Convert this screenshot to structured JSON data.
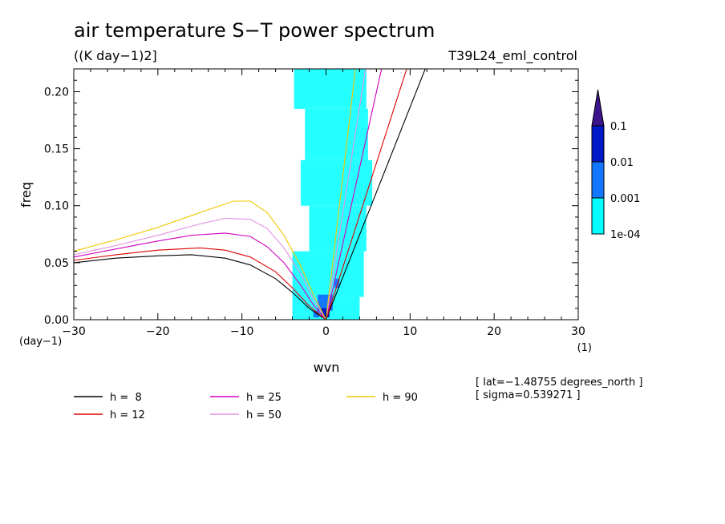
{
  "chart_data": {
    "type": "line",
    "title": "air temperature S−T power spectrum",
    "units": "((K day−1)2]",
    "run_label": "T39L24_eml_control",
    "xlabel": "wvn",
    "ylabel": "freq",
    "x_units": "(1)",
    "y_units": "(day−1)",
    "xlim": [
      -30,
      30
    ],
    "ylim": [
      0,
      0.22
    ],
    "x_ticks": [
      -30,
      -20,
      -10,
      0,
      10,
      20,
      30
    ],
    "x_tick_labels": [
      "−30",
      "−20",
      "−10",
      "0",
      "10",
      "20",
      "30"
    ],
    "y_ticks": [
      0,
      0.05,
      0.1,
      0.15,
      0.2
    ],
    "y_tick_labels": [
      "0.00",
      "0.05",
      "0.10",
      "0.15",
      "0.20"
    ],
    "colorbar": {
      "levels": [
        "1e-04",
        "0.001",
        "0.01",
        "0.1"
      ],
      "colors": [
        "#00ffff",
        "#1478ff",
        "#0019c8",
        "#3c148c"
      ]
    },
    "legend": {
      "placement": "bottom-left",
      "entries": [
        {
          "label": "h =  8",
          "color": "#000000"
        },
        {
          "label": "h = 12",
          "color": "#e00000"
        },
        {
          "label": "h = 25",
          "color": "#d000c0"
        },
        {
          "label": "h = 50",
          "color": "#e090e0"
        },
        {
          "label": "h = 90",
          "color": "#f0c800"
        }
      ]
    },
    "info": [
      "[ lat=−1.48755 degrees_north ]",
      "[ sigma=0.539271 ]"
    ],
    "kelvin_lines": [
      {
        "h": 8,
        "color": "#000000",
        "points": [
          [
            0,
            0
          ],
          [
            11.8,
            0.22
          ]
        ]
      },
      {
        "h": 12,
        "color": "#e00000",
        "points": [
          [
            0,
            0
          ],
          [
            9.6,
            0.22
          ]
        ]
      },
      {
        "h": 25,
        "color": "#d000c0",
        "points": [
          [
            0,
            0
          ],
          [
            6.6,
            0.22
          ]
        ]
      },
      {
        "h": 50,
        "color": "#e090e0",
        "points": [
          [
            0,
            0
          ],
          [
            4.7,
            0.22
          ]
        ]
      },
      {
        "h": 90,
        "color": "#f0c800",
        "points": [
          [
            0,
            0
          ],
          [
            3.5,
            0.22
          ]
        ]
      }
    ],
    "rossby_curves": [
      {
        "h": 8,
        "color": "#000000",
        "points": [
          [
            -30,
            0.05
          ],
          [
            -25,
            0.054
          ],
          [
            -20,
            0.056
          ],
          [
            -16,
            0.057
          ],
          [
            -12,
            0.054
          ],
          [
            -9,
            0.048
          ],
          [
            -6,
            0.036
          ],
          [
            -4,
            0.024
          ],
          [
            -2,
            0.01
          ],
          [
            0,
            0
          ]
        ]
      },
      {
        "h": 12,
        "color": "#e00000",
        "points": [
          [
            -30,
            0.052
          ],
          [
            -25,
            0.057
          ],
          [
            -20,
            0.061
          ],
          [
            -15,
            0.063
          ],
          [
            -12,
            0.061
          ],
          [
            -9,
            0.055
          ],
          [
            -6,
            0.042
          ],
          [
            -4,
            0.028
          ],
          [
            -2,
            0.012
          ],
          [
            0,
            0
          ]
        ]
      },
      {
        "h": 25,
        "color": "#d000c0",
        "points": [
          [
            -30,
            0.055
          ],
          [
            -25,
            0.062
          ],
          [
            -20,
            0.069
          ],
          [
            -16,
            0.074
          ],
          [
            -12,
            0.076
          ],
          [
            -9,
            0.073
          ],
          [
            -7,
            0.064
          ],
          [
            -5,
            0.05
          ],
          [
            -3,
            0.03
          ],
          [
            -1.5,
            0.013
          ],
          [
            0,
            0
          ]
        ]
      },
      {
        "h": 50,
        "color": "#e090e0",
        "points": [
          [
            -30,
            0.057
          ],
          [
            -25,
            0.065
          ],
          [
            -20,
            0.074
          ],
          [
            -15,
            0.084
          ],
          [
            -12,
            0.089
          ],
          [
            -9,
            0.088
          ],
          [
            -7,
            0.08
          ],
          [
            -5,
            0.063
          ],
          [
            -3,
            0.04
          ],
          [
            -1.5,
            0.018
          ],
          [
            0,
            0
          ]
        ]
      },
      {
        "h": 90,
        "color": "#f0c800",
        "points": [
          [
            -30,
            0.06
          ],
          [
            -25,
            0.07
          ],
          [
            -20,
            0.081
          ],
          [
            -15,
            0.094
          ],
          [
            -11,
            0.104
          ],
          [
            -9,
            0.104
          ],
          [
            -7,
            0.094
          ],
          [
            -5,
            0.074
          ],
          [
            -3,
            0.047
          ],
          [
            -1.5,
            0.022
          ],
          [
            0,
            0
          ]
        ]
      }
    ],
    "spectrum_patches": [
      {
        "x": [
          -3.8,
          4.8
        ],
        "y": [
          0.185,
          0.22
        ],
        "level": "1e-04"
      },
      {
        "x": [
          -2.5,
          5.0
        ],
        "y": [
          0.14,
          0.185
        ],
        "level": "1e-04"
      },
      {
        "x": [
          -3.0,
          5.5
        ],
        "y": [
          0.1,
          0.14
        ],
        "level": "1e-04"
      },
      {
        "x": [
          -2.0,
          4.8
        ],
        "y": [
          0.06,
          0.1
        ],
        "level": "1e-04"
      },
      {
        "x": [
          -4.0,
          4.5
        ],
        "y": [
          0.02,
          0.06
        ],
        "level": "1e-04"
      },
      {
        "x": [
          -4.0,
          4.0
        ],
        "y": [
          0.0,
          0.02
        ],
        "level": "1e-04"
      },
      {
        "x": [
          -1.0,
          0.8
        ],
        "y": [
          0.008,
          0.022
        ],
        "level": "0.001"
      },
      {
        "x": [
          -0.6,
          0.4
        ],
        "y": [
          0.002,
          0.01
        ],
        "level": "0.01"
      },
      {
        "x": [
          -1.5,
          -0.8
        ],
        "y": [
          0.002,
          0.008
        ],
        "level": "0.001"
      },
      {
        "x": [
          1.0,
          1.6
        ],
        "y": [
          0.028,
          0.036
        ],
        "level": "0.001"
      }
    ]
  }
}
